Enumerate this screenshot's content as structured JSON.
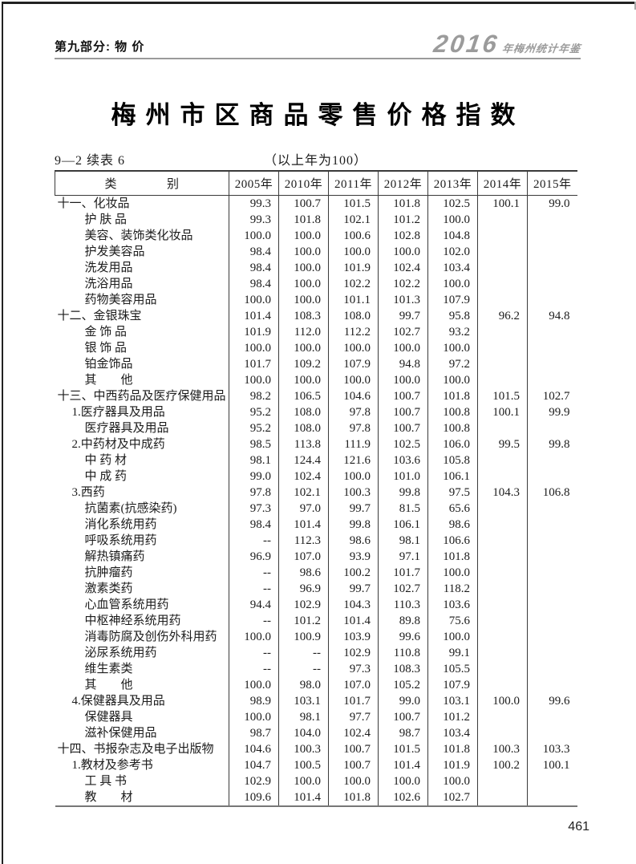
{
  "page": {
    "section_header": "第九部分: 物  价",
    "yearbook_logo": {
      "year": "2016",
      "suffix": "年梅州统计年鉴"
    },
    "title": "梅州市区商品零售价格指数",
    "table_no": "9—2  续表 6",
    "base_note": "（以上年为100）",
    "page_number": "461"
  },
  "colors": {
    "frame": "#222222",
    "header_rule": "#9a9a9a",
    "logo_grey": "#9b9b9b",
    "table_line": "#3a3a3a"
  },
  "table": {
    "category_header": "类　　　　别",
    "year_columns": [
      "2005年",
      "2010年",
      "2011年",
      "2012年",
      "2013年",
      "2014年",
      "2015年"
    ],
    "rows": [
      {
        "label": "十一、化妆品",
        "level": 0,
        "values": [
          "99.3",
          "100.7",
          "101.5",
          "101.8",
          "102.5",
          "100.1",
          "99.0"
        ]
      },
      {
        "label": "护 肤 品",
        "level": 2,
        "values": [
          "99.3",
          "101.8",
          "102.1",
          "101.2",
          "100.0",
          "",
          ""
        ]
      },
      {
        "label": "美容、装饰类化妆品",
        "level": 2,
        "values": [
          "100.0",
          "100.0",
          "100.6",
          "102.8",
          "104.8",
          "",
          ""
        ]
      },
      {
        "label": "护发美容品",
        "level": 2,
        "values": [
          "98.4",
          "100.0",
          "100.0",
          "100.0",
          "102.0",
          "",
          ""
        ]
      },
      {
        "label": "洗发用品",
        "level": 2,
        "values": [
          "98.4",
          "100.0",
          "101.9",
          "102.4",
          "103.4",
          "",
          ""
        ]
      },
      {
        "label": "洗浴用品",
        "level": 2,
        "values": [
          "98.4",
          "100.0",
          "102.2",
          "102.2",
          "100.0",
          "",
          ""
        ]
      },
      {
        "label": "药物美容用品",
        "level": 2,
        "values": [
          "100.0",
          "100.0",
          "101.1",
          "101.3",
          "107.9",
          "",
          ""
        ]
      },
      {
        "label": "十二、金银珠宝",
        "level": 0,
        "values": [
          "101.4",
          "108.3",
          "108.0",
          "99.7",
          "95.8",
          "96.2",
          "94.8"
        ]
      },
      {
        "label": "金 饰 品",
        "level": 2,
        "values": [
          "101.9",
          "112.0",
          "112.2",
          "102.7",
          "93.2",
          "",
          ""
        ]
      },
      {
        "label": "银 饰 品",
        "level": 2,
        "values": [
          "100.0",
          "100.0",
          "100.0",
          "100.0",
          "100.0",
          "",
          ""
        ]
      },
      {
        "label": "铂金饰品",
        "level": 2,
        "values": [
          "101.7",
          "109.2",
          "107.9",
          "94.8",
          "97.2",
          "",
          ""
        ]
      },
      {
        "label": "其　　他",
        "level": 2,
        "values": [
          "100.0",
          "100.0",
          "100.0",
          "100.0",
          "100.0",
          "",
          ""
        ]
      },
      {
        "label": "十三、中西药品及医疗保健用品",
        "level": 0,
        "values": [
          "98.2",
          "106.5",
          "104.6",
          "100.7",
          "101.8",
          "101.5",
          "102.7"
        ]
      },
      {
        "label": "1.医疗器具及用品",
        "level": 1,
        "values": [
          "95.2",
          "108.0",
          "97.8",
          "100.7",
          "100.8",
          "100.1",
          "99.9"
        ]
      },
      {
        "label": "医疗器具及用品",
        "level": 2,
        "values": [
          "95.2",
          "108.0",
          "97.8",
          "100.7",
          "100.8",
          "",
          ""
        ]
      },
      {
        "label": "2.中药材及中成药",
        "level": 1,
        "values": [
          "98.5",
          "113.8",
          "111.9",
          "102.5",
          "106.0",
          "99.5",
          "99.8"
        ]
      },
      {
        "label": "中 药 材",
        "level": 2,
        "values": [
          "98.1",
          "124.4",
          "121.6",
          "103.6",
          "105.8",
          "",
          ""
        ]
      },
      {
        "label": "中 成 药",
        "level": 2,
        "values": [
          "99.0",
          "102.4",
          "100.0",
          "101.0",
          "106.1",
          "",
          ""
        ]
      },
      {
        "label": "3.西药",
        "level": 1,
        "values": [
          "97.8",
          "102.1",
          "100.3",
          "99.8",
          "97.5",
          "104.3",
          "106.8"
        ]
      },
      {
        "label": "抗菌素(抗感染药)",
        "level": 2,
        "values": [
          "97.3",
          "97.0",
          "99.7",
          "81.5",
          "65.6",
          "",
          ""
        ]
      },
      {
        "label": "消化系统用药",
        "level": 2,
        "values": [
          "98.4",
          "101.4",
          "99.8",
          "106.1",
          "98.6",
          "",
          ""
        ]
      },
      {
        "label": "呼吸系统用药",
        "level": 2,
        "values": [
          "--",
          "112.3",
          "98.6",
          "98.1",
          "106.6",
          "",
          ""
        ]
      },
      {
        "label": "解热镇痛药",
        "level": 2,
        "values": [
          "96.9",
          "107.0",
          "93.9",
          "97.1",
          "101.8",
          "",
          ""
        ]
      },
      {
        "label": "抗肿瘤药",
        "level": 2,
        "values": [
          "--",
          "98.6",
          "100.2",
          "101.7",
          "100.0",
          "",
          ""
        ]
      },
      {
        "label": "激素类药",
        "level": 2,
        "values": [
          "--",
          "96.9",
          "99.7",
          "102.7",
          "118.2",
          "",
          ""
        ]
      },
      {
        "label": "心血管系统用药",
        "level": 2,
        "values": [
          "94.4",
          "102.9",
          "104.3",
          "110.3",
          "103.6",
          "",
          ""
        ]
      },
      {
        "label": "中枢神经系统用药",
        "level": 2,
        "values": [
          "--",
          "101.2",
          "101.4",
          "89.8",
          "75.6",
          "",
          ""
        ]
      },
      {
        "label": "消毒防腐及创伤外科用药",
        "level": 2,
        "values": [
          "100.0",
          "100.9",
          "103.9",
          "99.6",
          "100.0",
          "",
          ""
        ]
      },
      {
        "label": "泌尿系统用药",
        "level": 2,
        "values": [
          "--",
          "--",
          "102.9",
          "110.8",
          "99.1",
          "",
          ""
        ]
      },
      {
        "label": "维生素类",
        "level": 2,
        "values": [
          "--",
          "--",
          "97.3",
          "108.3",
          "105.5",
          "",
          ""
        ]
      },
      {
        "label": "其　　他",
        "level": 2,
        "values": [
          "100.0",
          "98.0",
          "107.0",
          "105.2",
          "107.9",
          "",
          ""
        ]
      },
      {
        "label": "4.保健器具及用品",
        "level": 1,
        "values": [
          "98.9",
          "103.1",
          "101.7",
          "99.0",
          "103.1",
          "100.0",
          "99.6"
        ]
      },
      {
        "label": "保健器具",
        "level": 2,
        "values": [
          "100.0",
          "98.1",
          "97.7",
          "100.7",
          "101.2",
          "",
          ""
        ]
      },
      {
        "label": "滋补保健用品",
        "level": 2,
        "values": [
          "98.7",
          "104.0",
          "102.4",
          "98.7",
          "103.4",
          "",
          ""
        ]
      },
      {
        "label": "十四、书报杂志及电子出版物",
        "level": 0,
        "values": [
          "104.6",
          "100.3",
          "100.7",
          "101.5",
          "101.8",
          "100.3",
          "103.3"
        ]
      },
      {
        "label": "1.教材及参考书",
        "level": 1,
        "values": [
          "104.7",
          "100.5",
          "100.7",
          "101.4",
          "101.9",
          "100.2",
          "100.1"
        ]
      },
      {
        "label": "工 具 书",
        "level": 2,
        "values": [
          "102.9",
          "100.0",
          "100.0",
          "100.0",
          "100.0",
          "",
          ""
        ]
      },
      {
        "label": "教　　材",
        "level": 2,
        "values": [
          "109.6",
          "101.4",
          "101.8",
          "102.6",
          "102.7",
          "",
          ""
        ]
      }
    ]
  }
}
